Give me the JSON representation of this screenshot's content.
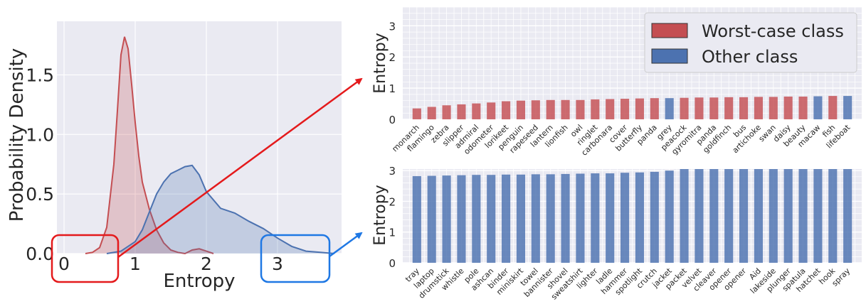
{
  "colors": {
    "worst": "#c44e52",
    "other": "#4c72b0",
    "panel_bg": "#eaeaf2",
    "grid": "#ffffff",
    "arrow_red": "#e41a1c",
    "arrow_blue": "#1f78e4"
  },
  "chart_data": [
    {
      "type": "area",
      "xlabel": "Entropy",
      "ylabel": "Probability Density",
      "xlim": [
        -0.1,
        3.9
      ],
      "ylim": [
        0,
        1.95
      ],
      "xticks": [
        0,
        1,
        2,
        3
      ],
      "xtick_labels": [
        "0",
        "1",
        "2",
        "3"
      ],
      "yticks": [
        0,
        0.5,
        1.0,
        1.5
      ],
      "ytick_labels": [
        "0.0",
        "0.5",
        "1.0",
        "1.5"
      ],
      "grid": true,
      "series": [
        {
          "key": "worst",
          "x": [
            0.3,
            0.4,
            0.5,
            0.6,
            0.7,
            0.75,
            0.8,
            0.85,
            0.9,
            0.95,
            1.0,
            1.05,
            1.1,
            1.2,
            1.3,
            1.4,
            1.5,
            1.6,
            1.7,
            1.8,
            1.9,
            2.0,
            2.1
          ],
          "y": [
            0.0,
            0.01,
            0.05,
            0.22,
            0.75,
            1.2,
            1.67,
            1.82,
            1.72,
            1.42,
            1.1,
            0.82,
            0.6,
            0.37,
            0.2,
            0.09,
            0.03,
            0.01,
            0.0,
            0.03,
            0.04,
            0.02,
            0.0
          ]
        },
        {
          "key": "other",
          "x": [
            0.6,
            0.8,
            1.0,
            1.1,
            1.2,
            1.3,
            1.4,
            1.5,
            1.6,
            1.7,
            1.8,
            1.9,
            2.0,
            2.2,
            2.4,
            2.6,
            2.8,
            3.0,
            3.2,
            3.4,
            3.6,
            3.8
          ],
          "y": [
            0.0,
            0.02,
            0.1,
            0.2,
            0.35,
            0.5,
            0.6,
            0.67,
            0.7,
            0.73,
            0.74,
            0.66,
            0.52,
            0.38,
            0.34,
            0.27,
            0.21,
            0.13,
            0.06,
            0.02,
            0.01,
            0.0
          ]
        }
      ]
    },
    {
      "type": "bar",
      "ylabel": "Entropy",
      "ylim": [
        0,
        3.6
      ],
      "yticks": [
        0,
        1,
        2,
        3
      ],
      "ytick_labels": [
        "0",
        "1",
        "2",
        "3"
      ],
      "grid": true,
      "legend_position": "top-right",
      "legend": [
        {
          "key": "worst",
          "label": "Worst-case class"
        },
        {
          "key": "other",
          "label": "Other class"
        }
      ],
      "categories": [
        "monarch",
        "flamingo",
        "zebra",
        "slipper",
        "admiral",
        "odometer",
        "lorikeet",
        "penguin",
        "rapeseed",
        "lantern",
        "lionfish",
        "owl",
        "ringlet",
        "carbonara",
        "cover",
        "butterfly",
        "panda",
        "grey",
        "peacock",
        "gyromitra",
        "panda",
        "goldfinch",
        "bus",
        "artichoke",
        "swan",
        "daisy",
        "beauty",
        "macaw",
        "fish",
        "lifeboat"
      ],
      "values": [
        0.35,
        0.4,
        0.45,
        0.48,
        0.51,
        0.54,
        0.58,
        0.6,
        0.61,
        0.62,
        0.62,
        0.62,
        0.64,
        0.65,
        0.66,
        0.67,
        0.68,
        0.68,
        0.69,
        0.7,
        0.7,
        0.71,
        0.71,
        0.72,
        0.72,
        0.73,
        0.73,
        0.74,
        0.75,
        0.75
      ],
      "classes": [
        "worst",
        "worst",
        "worst",
        "worst",
        "worst",
        "worst",
        "worst",
        "worst",
        "worst",
        "worst",
        "worst",
        "worst",
        "worst",
        "worst",
        "worst",
        "worst",
        "worst",
        "other",
        "worst",
        "worst",
        "worst",
        "worst",
        "worst",
        "worst",
        "worst",
        "worst",
        "worst",
        "other",
        "worst",
        "other"
      ]
    },
    {
      "type": "bar",
      "ylabel": "Entropy",
      "ylim": [
        0,
        3.05
      ],
      "yticks": [
        0,
        1,
        2,
        3
      ],
      "ytick_labels": [
        "0",
        "1",
        "2",
        "3"
      ],
      "grid": true,
      "categories": [
        "tray",
        "laptop",
        "drumstick",
        "whistle",
        "pole",
        "ashcan",
        "binder",
        "miniskirt",
        "towel",
        "bannister",
        "shovel",
        "sweatshirt",
        "lighter",
        "ladle",
        "hammer",
        "spotlight",
        "crutch",
        "jacket",
        "packet",
        "velvet",
        "cleaver",
        "opener",
        "opener",
        "Aid",
        "lakeside",
        "plunger",
        "spatula",
        "hatchet",
        "hook",
        "spray"
      ],
      "values": [
        2.82,
        2.83,
        2.84,
        2.85,
        2.86,
        2.86,
        2.87,
        2.87,
        2.88,
        2.88,
        2.89,
        2.9,
        2.91,
        2.91,
        2.93,
        2.94,
        2.96,
        3.0,
        3.05,
        3.05,
        3.05,
        3.05,
        3.05,
        3.05,
        3.05,
        3.05,
        3.05,
        3.05,
        3.05,
        3.05
      ],
      "classes": [
        "other",
        "other",
        "other",
        "other",
        "other",
        "other",
        "other",
        "other",
        "other",
        "other",
        "other",
        "other",
        "other",
        "other",
        "other",
        "other",
        "other",
        "other",
        "other",
        "other",
        "other",
        "other",
        "other",
        "other",
        "other",
        "other",
        "other",
        "other",
        "other",
        "other"
      ]
    }
  ]
}
